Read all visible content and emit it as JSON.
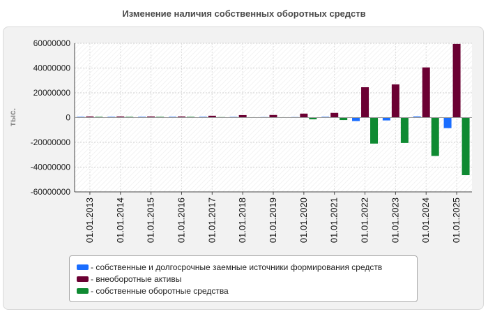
{
  "chart_data": {
    "type": "bar",
    "title": "Изменение наличия собственных оборотных средств",
    "ylabel": "тыс.",
    "xlabel": "",
    "ylim": [
      -60000000,
      60000000
    ],
    "yticks": [
      60000000,
      40000000,
      20000000,
      0,
      -20000000,
      -40000000,
      -60000000
    ],
    "ytick_labels": [
      "60000000",
      "40000000",
      "20000000",
      "0",
      "-20000000",
      "-40000000",
      "-60000000"
    ],
    "grid": true,
    "legend_position": "bottom",
    "categories": [
      "01.01.2013",
      "01.01.2014",
      "01.01.2015",
      "01.01.2016",
      "01.01.2017",
      "01.01.2018",
      "01.01.2019",
      "01.01.2020",
      "01.01.2021",
      "01.01.2022",
      "01.01.2023",
      "01.01.2024",
      "01.01.2025"
    ],
    "series": [
      {
        "name": "- собственные и долгосрочные заемные источники формирования средств",
        "color": "#1a6dff",
        "values": [
          600000,
          600000,
          600000,
          600000,
          600000,
          500000,
          400000,
          400000,
          600000,
          -2800000,
          -2300000,
          900000,
          -8500000
        ]
      },
      {
        "name": "- внеоборотные активы",
        "color": "#6b0033",
        "values": [
          900000,
          900000,
          900000,
          900000,
          1500000,
          2000000,
          2100000,
          3200000,
          3800000,
          24500000,
          26800000,
          40500000,
          59500000
        ]
      },
      {
        "name": "- собственные оборотные средства",
        "color": "#0f8a32",
        "values": [
          600000,
          600000,
          600000,
          600000,
          400000,
          300000,
          300000,
          -1400000,
          -2000000,
          -21000000,
          -20500000,
          -31000000,
          -46500000
        ]
      }
    ]
  }
}
